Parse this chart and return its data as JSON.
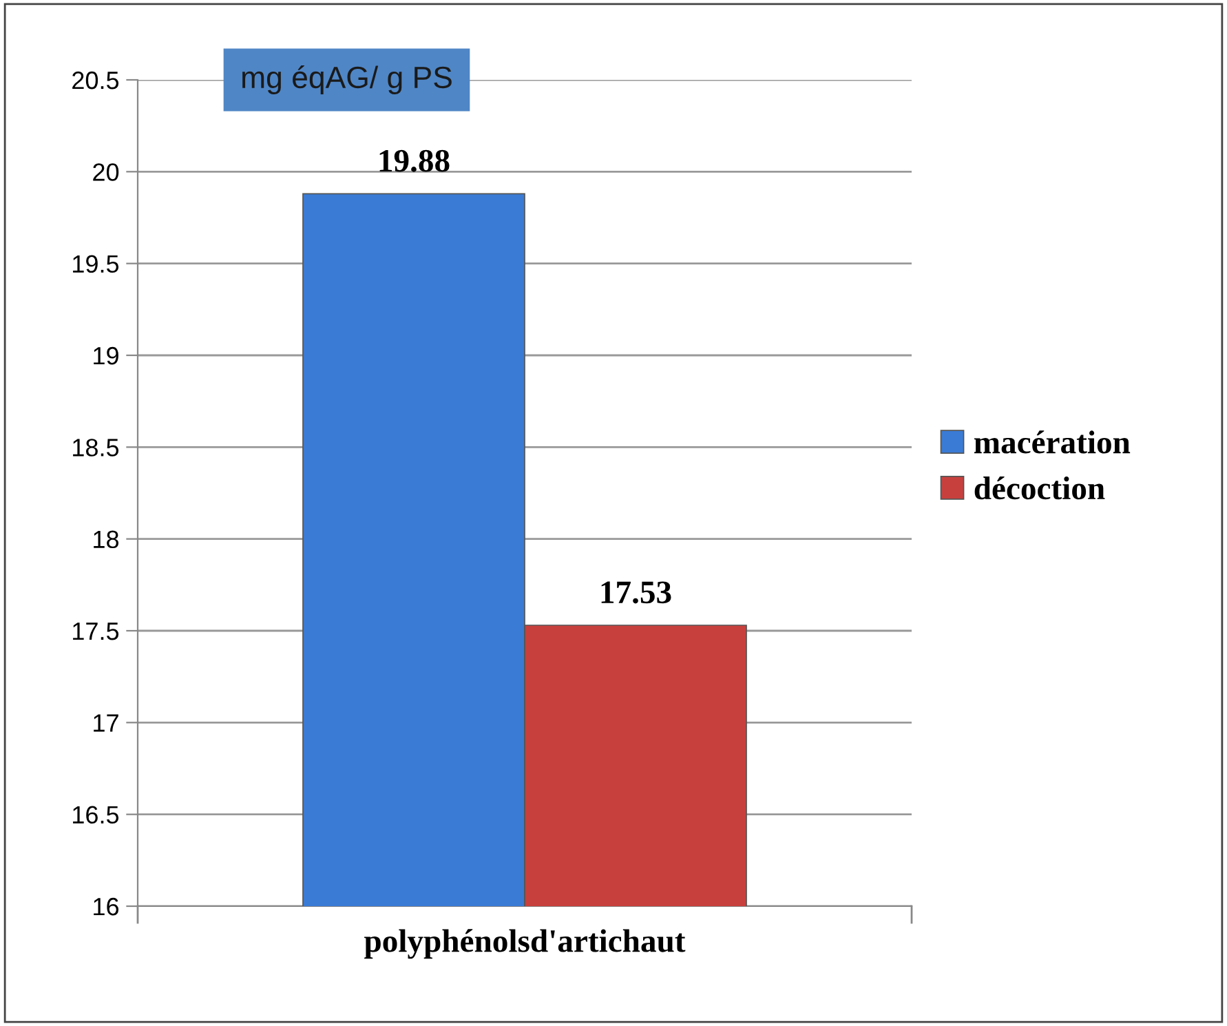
{
  "chart_data": {
    "type": "bar",
    "ylabel": "mg éqAG/ g PS",
    "categories": [
      "polyphénolsd'artichaut"
    ],
    "series": [
      {
        "name": "macération",
        "color": "#3a7bd5",
        "values": [
          19.88
        ]
      },
      {
        "name": "décoction",
        "color": "#c8403d",
        "values": [
          17.53
        ]
      }
    ],
    "ylim": [
      16,
      20.5
    ],
    "yticks": [
      16,
      16.5,
      17,
      17.5,
      18,
      18.5,
      19,
      19.5,
      20,
      20.5
    ],
    "grid": "y",
    "legend": "right",
    "data_labels": true
  }
}
